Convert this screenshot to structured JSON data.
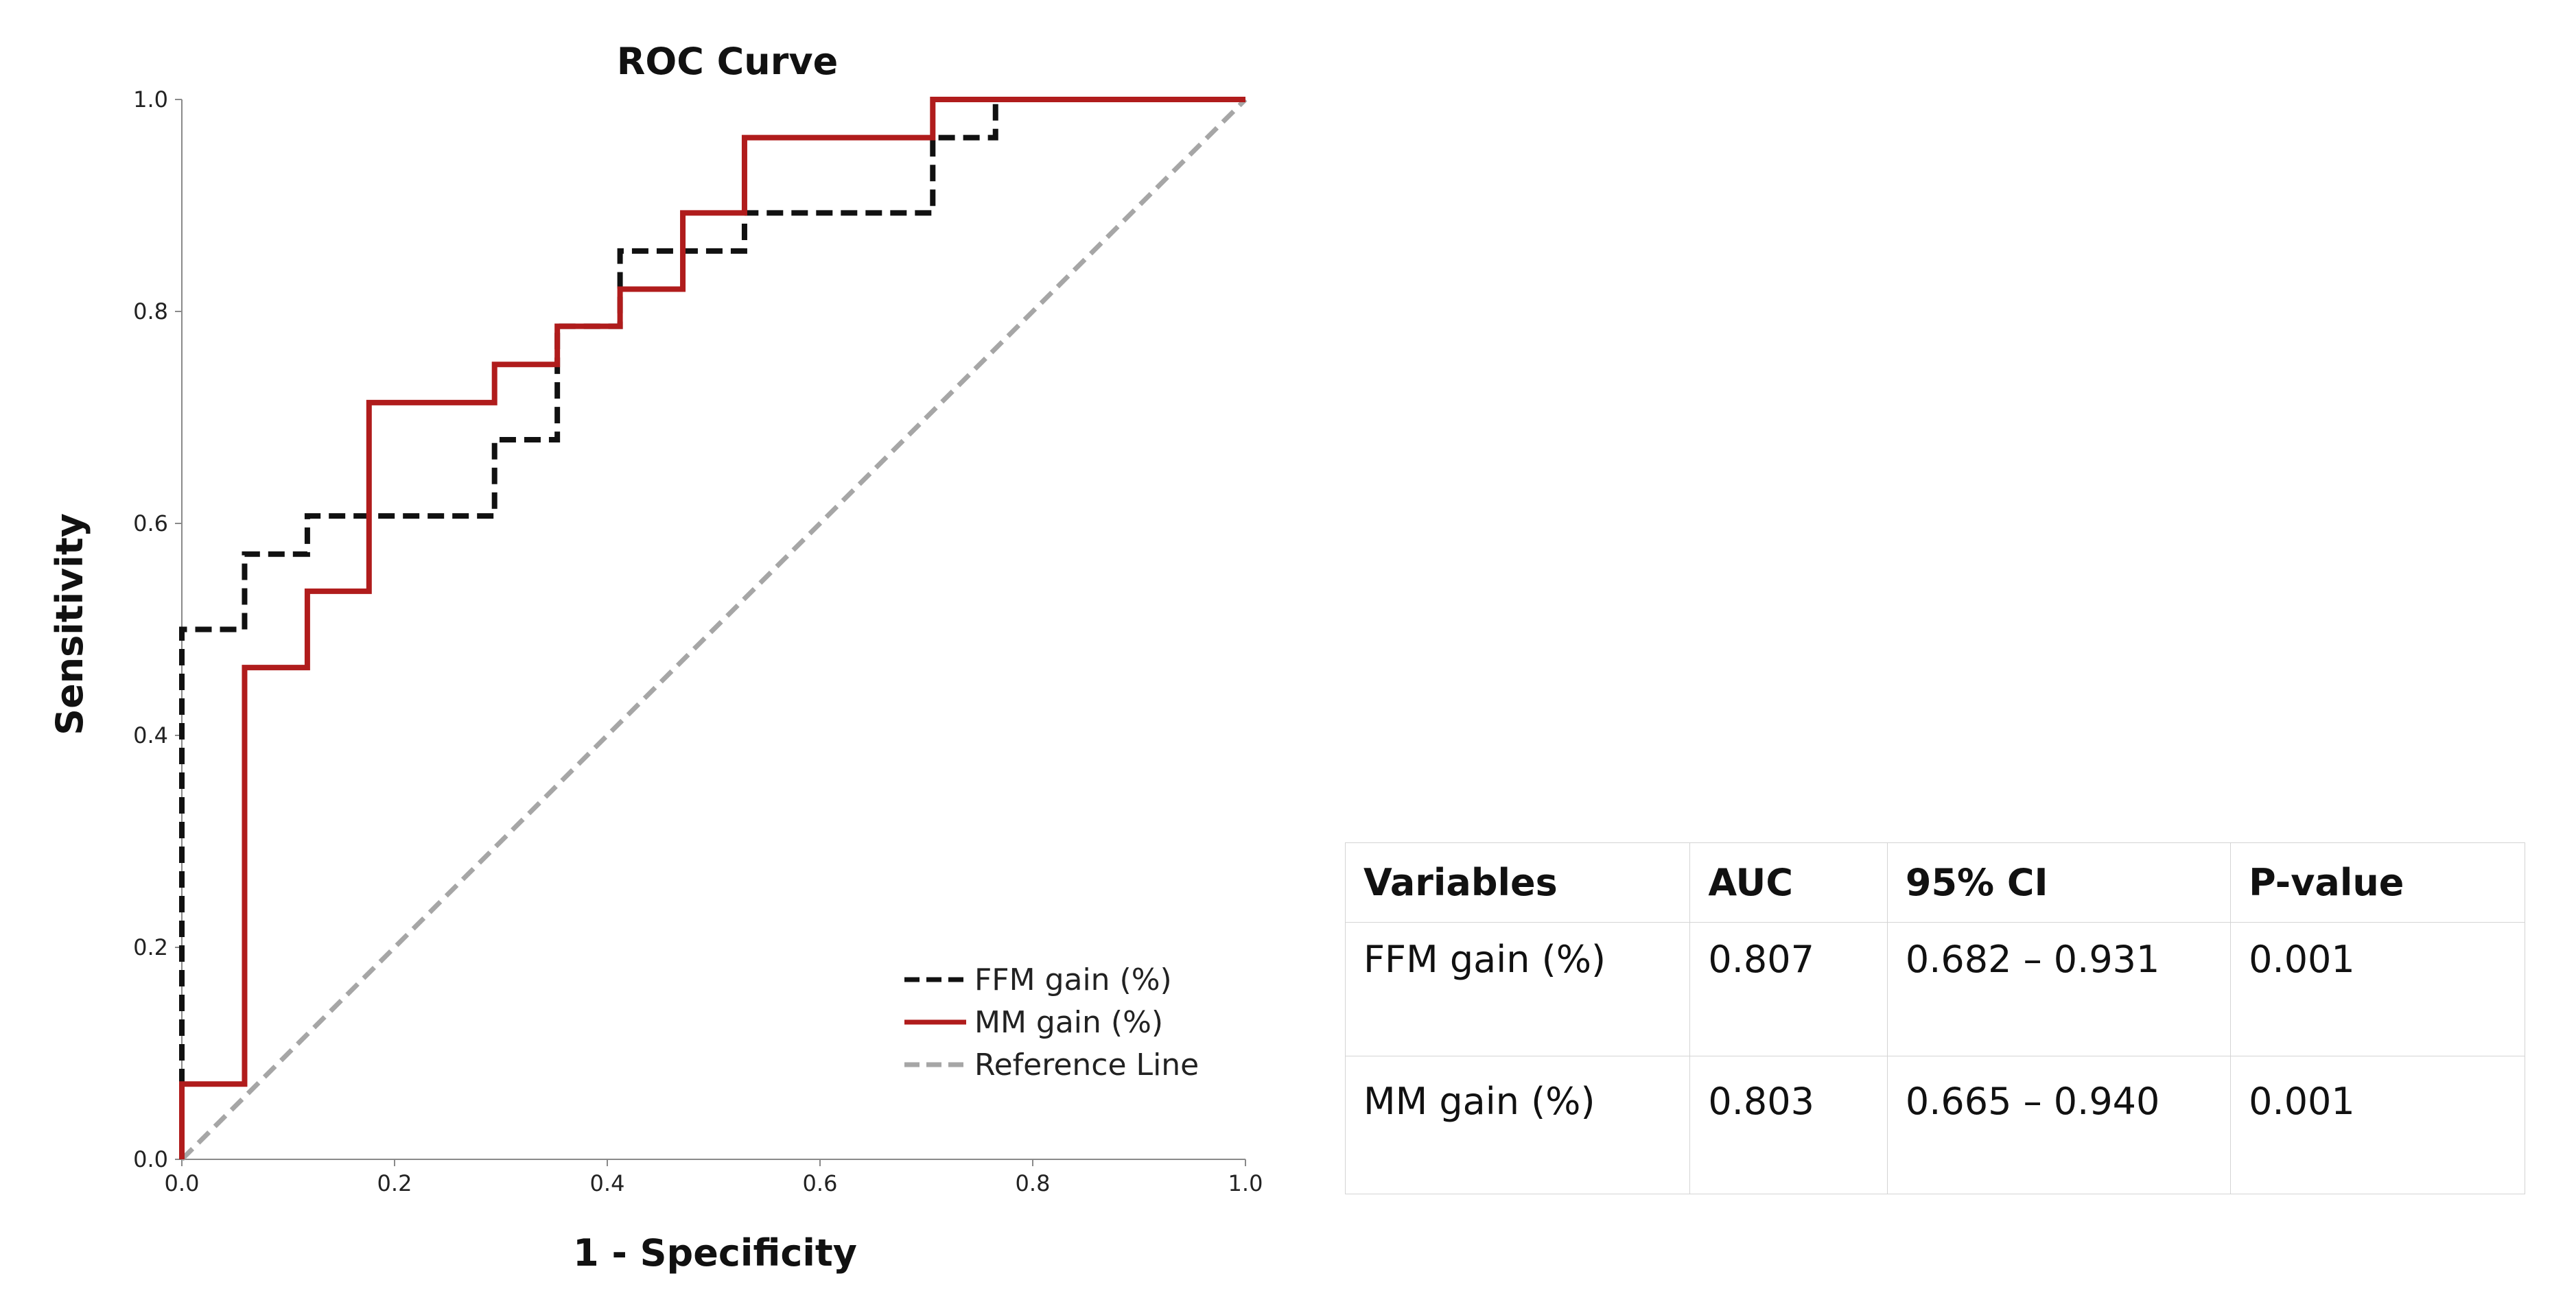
{
  "chart_data": {
    "type": "line",
    "title": "ROC Curve",
    "xlabel": "1 - Specificity",
    "ylabel": "Sensitivity",
    "xlim": [
      0,
      1
    ],
    "ylim": [
      0,
      1
    ],
    "xticks": [
      "0.0",
      "0.2",
      "0.4",
      "0.6",
      "0.8",
      "1.0"
    ],
    "yticks": [
      "0.0",
      "0.2",
      "0.4",
      "0.6",
      "0.8",
      "1.0"
    ],
    "grid": false,
    "legend_position": "bottom-right",
    "series": [
      {
        "name": "FFM gain (%)",
        "color": "#111111",
        "style": "dashed",
        "x": [
          0,
          0,
          0.059,
          0.059,
          0.118,
          0.118,
          0.294,
          0.294,
          0.353,
          0.353,
          0.412,
          0.412,
          0.529,
          0.529,
          0.706,
          0.706,
          0.765,
          0.765,
          1.0
        ],
        "y": [
          0,
          0.5,
          0.5,
          0.571,
          0.571,
          0.607,
          0.607,
          0.679,
          0.679,
          0.786,
          0.786,
          0.857,
          0.857,
          0.893,
          0.893,
          0.964,
          0.964,
          1.0,
          1.0
        ]
      },
      {
        "name": "MM gain (%)",
        "color": "#b01c1c",
        "style": "solid",
        "x": [
          0,
          0,
          0.059,
          0.059,
          0.118,
          0.118,
          0.176,
          0.176,
          0.294,
          0.294,
          0.353,
          0.353,
          0.412,
          0.412,
          0.471,
          0.471,
          0.529,
          0.529,
          0.706,
          0.706,
          1.0
        ],
        "y": [
          0,
          0.071,
          0.071,
          0.464,
          0.464,
          0.536,
          0.536,
          0.714,
          0.714,
          0.75,
          0.75,
          0.786,
          0.786,
          0.821,
          0.821,
          0.893,
          0.893,
          0.964,
          0.964,
          1.0,
          1.0
        ]
      },
      {
        "name": "Reference Line",
        "color": "#a6a6a6",
        "style": "dashed",
        "x": [
          0,
          1
        ],
        "y": [
          0,
          1
        ]
      }
    ]
  },
  "table": {
    "headers": [
      "Variables",
      "AUC",
      "95% CI",
      "P-value"
    ],
    "rows": [
      [
        "FFM gain (%)",
        "0.807",
        "0.682 – 0.931",
        "0.001"
      ],
      [
        "MM gain (%)",
        "0.803",
        "0.665 – 0.940",
        "0.001"
      ]
    ]
  }
}
